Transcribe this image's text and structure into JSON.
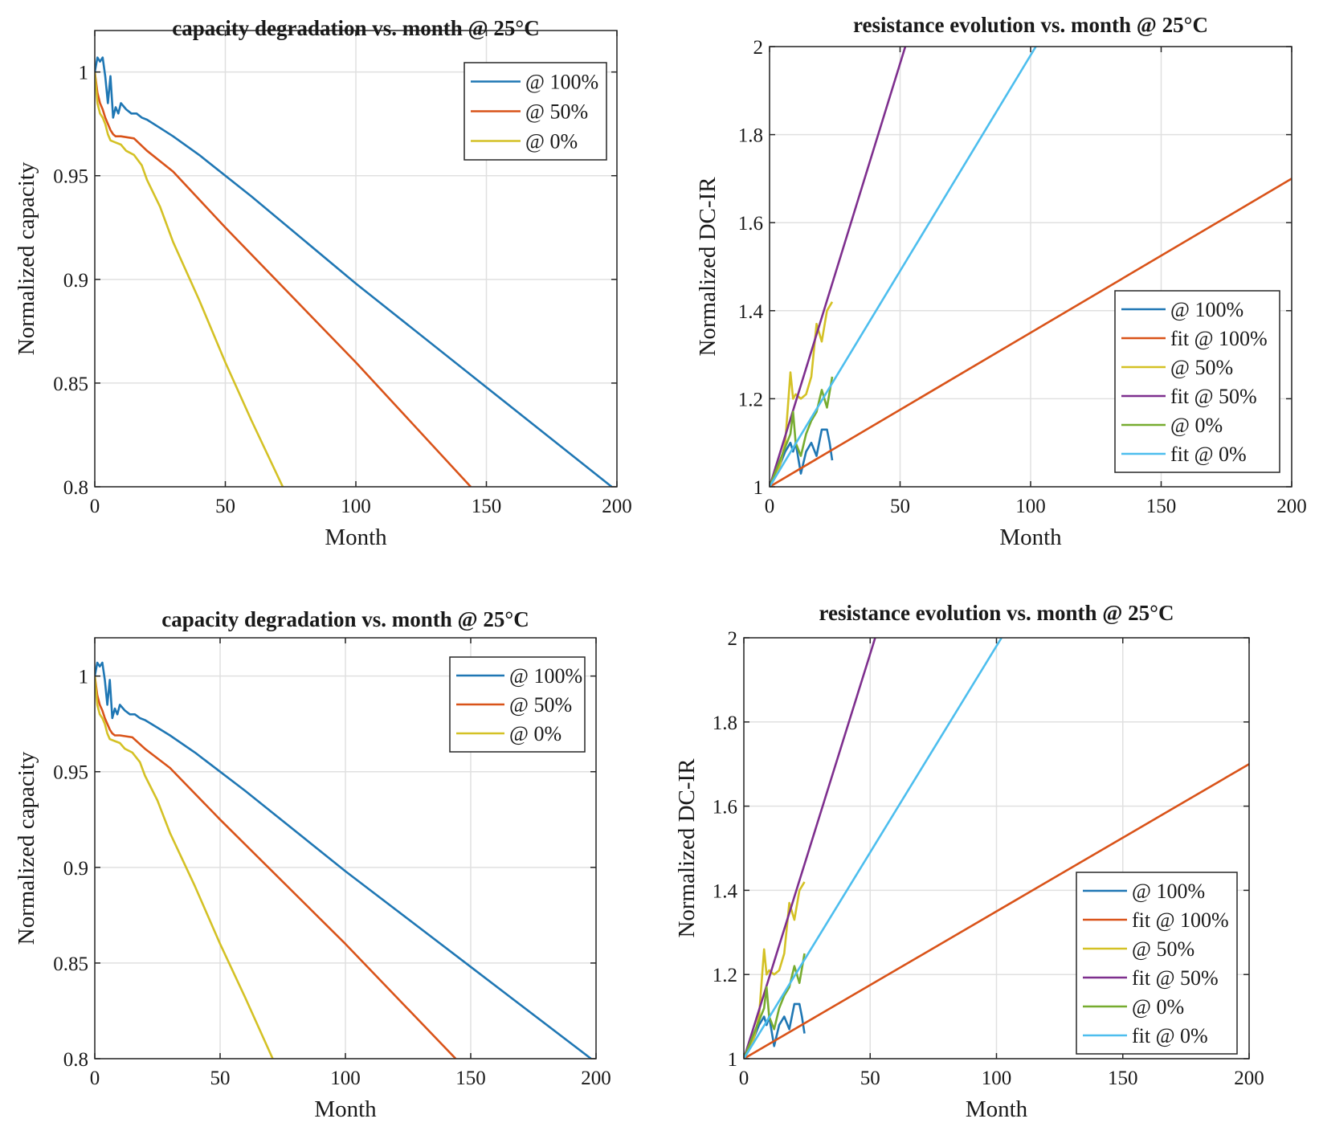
{
  "chart_data": [
    {
      "type": "line",
      "title": "capacity degradation vs. month @ 25°C",
      "xlabel": "Month",
      "ylabel": "Normalized capacity",
      "xlim": [
        0,
        200
      ],
      "ylim": [
        0.8,
        1.02
      ],
      "xticks": [
        0,
        50,
        100,
        150,
        200
      ],
      "yticks": [
        0.8,
        0.85,
        0.9,
        0.95,
        1
      ],
      "ytick_labels": [
        "0.8",
        "0.85",
        "0.9",
        "0.95",
        "1"
      ],
      "grid": true,
      "legend_position": "top-right",
      "series": [
        {
          "name": "@ 100%",
          "color": "#1f77b4",
          "x": [
            0,
            1,
            2,
            3,
            4,
            5,
            6,
            7,
            8,
            9,
            10,
            12,
            14,
            16,
            18,
            20,
            25,
            30,
            40,
            60,
            100,
            150,
            198
          ],
          "y": [
            1.0,
            1.007,
            1.005,
            1.007,
            0.998,
            0.985,
            0.998,
            0.978,
            0.983,
            0.98,
            0.985,
            0.982,
            0.98,
            0.98,
            0.978,
            0.977,
            0.973,
            0.969,
            0.96,
            0.94,
            0.898,
            0.848,
            0.8
          ]
        },
        {
          "name": "@ 50%",
          "color": "#d95319",
          "x": [
            0,
            1,
            2,
            3,
            4,
            5,
            6,
            7,
            8,
            10,
            15,
            20,
            30,
            50,
            100,
            144
          ],
          "y": [
            1.0,
            0.99,
            0.985,
            0.982,
            0.978,
            0.975,
            0.972,
            0.97,
            0.969,
            0.969,
            0.968,
            0.962,
            0.952,
            0.925,
            0.86,
            0.8
          ]
        },
        {
          "name": "@ 0%",
          "color": "#d4c125",
          "x": [
            0,
            1,
            2,
            3,
            4,
            5,
            6,
            8,
            10,
            12,
            15,
            18,
            20,
            25,
            30,
            40,
            50,
            60,
            72
          ],
          "y": [
            1.0,
            0.985,
            0.98,
            0.978,
            0.975,
            0.97,
            0.967,
            0.966,
            0.965,
            0.962,
            0.96,
            0.955,
            0.948,
            0.935,
            0.918,
            0.89,
            0.86,
            0.832,
            0.8
          ]
        }
      ]
    },
    {
      "type": "line",
      "title": "resistance evolution vs. month @ 25°C",
      "xlabel": "Month",
      "ylabel": "Normalized DC-IR",
      "xlim": [
        0,
        200
      ],
      "ylim": [
        1,
        2
      ],
      "xticks": [
        0,
        50,
        100,
        150,
        200
      ],
      "yticks": [
        1,
        1.2,
        1.4,
        1.6,
        1.8,
        2
      ],
      "ytick_labels": [
        "1",
        "1.2",
        "1.4",
        "1.6",
        "1.8",
        "2"
      ],
      "grid": true,
      "legend_position": "bottom-right",
      "series": [
        {
          "name": "@ 100%",
          "color": "#1f77b4",
          "x": [
            0,
            2,
            4,
            6,
            8,
            9,
            10,
            12,
            14,
            16,
            18,
            20,
            22,
            23,
            24
          ],
          "y": [
            1.0,
            1.02,
            1.05,
            1.08,
            1.1,
            1.08,
            1.1,
            1.03,
            1.08,
            1.1,
            1.07,
            1.13,
            1.13,
            1.1,
            1.06
          ]
        },
        {
          "name": "fit @ 100%",
          "color": "#d95319",
          "x": [
            0,
            200
          ],
          "y": [
            1.0,
            1.7
          ]
        },
        {
          "name": "@ 50%",
          "color": "#d4c125",
          "x": [
            0,
            2,
            4,
            6,
            8,
            9,
            10,
            12,
            14,
            16,
            18,
            20,
            22,
            24
          ],
          "y": [
            1.0,
            1.02,
            1.05,
            1.1,
            1.26,
            1.2,
            1.21,
            1.2,
            1.21,
            1.25,
            1.37,
            1.33,
            1.4,
            1.42
          ]
        },
        {
          "name": "fit @ 50%",
          "color": "#7e2f8e",
          "x": [
            0,
            52
          ],
          "y": [
            1.0,
            2.0
          ]
        },
        {
          "name": "@ 0%",
          "color": "#77ac30",
          "x": [
            0,
            2,
            4,
            6,
            8,
            9,
            10,
            12,
            14,
            16,
            18,
            20,
            22,
            24
          ],
          "y": [
            1.0,
            1.03,
            1.06,
            1.09,
            1.12,
            1.17,
            1.1,
            1.07,
            1.12,
            1.15,
            1.17,
            1.22,
            1.18,
            1.25
          ]
        },
        {
          "name": "fit @ 0%",
          "color": "#4dbeee",
          "x": [
            0,
            102
          ],
          "y": [
            1.0,
            2.0
          ]
        }
      ]
    },
    {
      "type": "line",
      "title": "capacity degradation vs. month @ 25°C",
      "xlabel": "Month",
      "ylabel": "Normalized capacity",
      "xlim": [
        0,
        200
      ],
      "ylim": [
        0.8,
        1.02
      ],
      "xticks": [
        0,
        50,
        100,
        150,
        200
      ],
      "yticks": [
        0.8,
        0.85,
        0.9,
        0.95,
        1
      ],
      "ytick_labels": [
        "0.8",
        "0.85",
        "0.9",
        "0.95",
        "1"
      ],
      "grid": true,
      "legend_position": "top-right",
      "series": [
        {
          "name": "@ 100%",
          "color": "#1f77b4",
          "x": [
            0,
            1,
            2,
            3,
            4,
            5,
            6,
            7,
            8,
            9,
            10,
            12,
            14,
            16,
            18,
            20,
            25,
            30,
            40,
            60,
            100,
            150,
            198
          ],
          "y": [
            1.0,
            1.007,
            1.005,
            1.007,
            0.998,
            0.985,
            0.998,
            0.978,
            0.983,
            0.98,
            0.985,
            0.982,
            0.98,
            0.98,
            0.978,
            0.977,
            0.973,
            0.969,
            0.96,
            0.94,
            0.898,
            0.848,
            0.8
          ]
        },
        {
          "name": "@ 50%",
          "color": "#d95319",
          "x": [
            0,
            1,
            2,
            3,
            4,
            5,
            6,
            7,
            8,
            10,
            15,
            20,
            30,
            50,
            100,
            144
          ],
          "y": [
            1.0,
            0.99,
            0.985,
            0.982,
            0.978,
            0.975,
            0.972,
            0.97,
            0.969,
            0.969,
            0.968,
            0.962,
            0.952,
            0.925,
            0.86,
            0.8
          ]
        },
        {
          "name": "@ 0%",
          "color": "#d4c125",
          "x": [
            0,
            1,
            2,
            3,
            4,
            5,
            6,
            8,
            10,
            12,
            15,
            18,
            20,
            25,
            30,
            40,
            50,
            60,
            71
          ],
          "y": [
            1.0,
            0.985,
            0.98,
            0.978,
            0.975,
            0.97,
            0.967,
            0.966,
            0.965,
            0.962,
            0.96,
            0.955,
            0.948,
            0.935,
            0.918,
            0.89,
            0.86,
            0.832,
            0.8
          ]
        }
      ]
    },
    {
      "type": "line",
      "title": "resistance evolution vs. month @ 25°C",
      "xlabel": "Month",
      "ylabel": "Normalized DC-IR",
      "xlim": [
        0,
        200
      ],
      "ylim": [
        1,
        2
      ],
      "xticks": [
        0,
        50,
        100,
        150,
        200
      ],
      "yticks": [
        1,
        1.2,
        1.4,
        1.6,
        1.8,
        2
      ],
      "ytick_labels": [
        "1",
        "1.2",
        "1.4",
        "1.6",
        "1.8",
        "2"
      ],
      "grid": true,
      "legend_position": "bottom-right",
      "series": [
        {
          "name": "@ 100%",
          "color": "#1f77b4",
          "x": [
            0,
            2,
            4,
            6,
            8,
            9,
            10,
            12,
            14,
            16,
            18,
            20,
            22,
            23,
            24
          ],
          "y": [
            1.0,
            1.02,
            1.05,
            1.08,
            1.1,
            1.08,
            1.1,
            1.03,
            1.08,
            1.1,
            1.07,
            1.13,
            1.13,
            1.1,
            1.06
          ]
        },
        {
          "name": "fit @ 100%",
          "color": "#d95319",
          "x": [
            0,
            200
          ],
          "y": [
            1.0,
            1.7
          ]
        },
        {
          "name": "@ 50%",
          "color": "#d4c125",
          "x": [
            0,
            2,
            4,
            6,
            8,
            9,
            10,
            12,
            14,
            16,
            18,
            20,
            22,
            24
          ],
          "y": [
            1.0,
            1.02,
            1.05,
            1.1,
            1.26,
            1.2,
            1.21,
            1.2,
            1.21,
            1.25,
            1.37,
            1.33,
            1.4,
            1.42
          ]
        },
        {
          "name": "fit @ 50%",
          "color": "#7e2f8e",
          "x": [
            0,
            52
          ],
          "y": [
            1.0,
            2.0
          ]
        },
        {
          "name": "@ 0%",
          "color": "#77ac30",
          "x": [
            0,
            2,
            4,
            6,
            8,
            9,
            10,
            12,
            14,
            16,
            18,
            20,
            22,
            24
          ],
          "y": [
            1.0,
            1.03,
            1.06,
            1.09,
            1.12,
            1.17,
            1.1,
            1.07,
            1.12,
            1.15,
            1.17,
            1.22,
            1.18,
            1.25
          ]
        },
        {
          "name": "fit @ 0%",
          "color": "#4dbeee",
          "x": [
            0,
            102
          ],
          "y": [
            1.0,
            2.0
          ]
        }
      ]
    }
  ]
}
